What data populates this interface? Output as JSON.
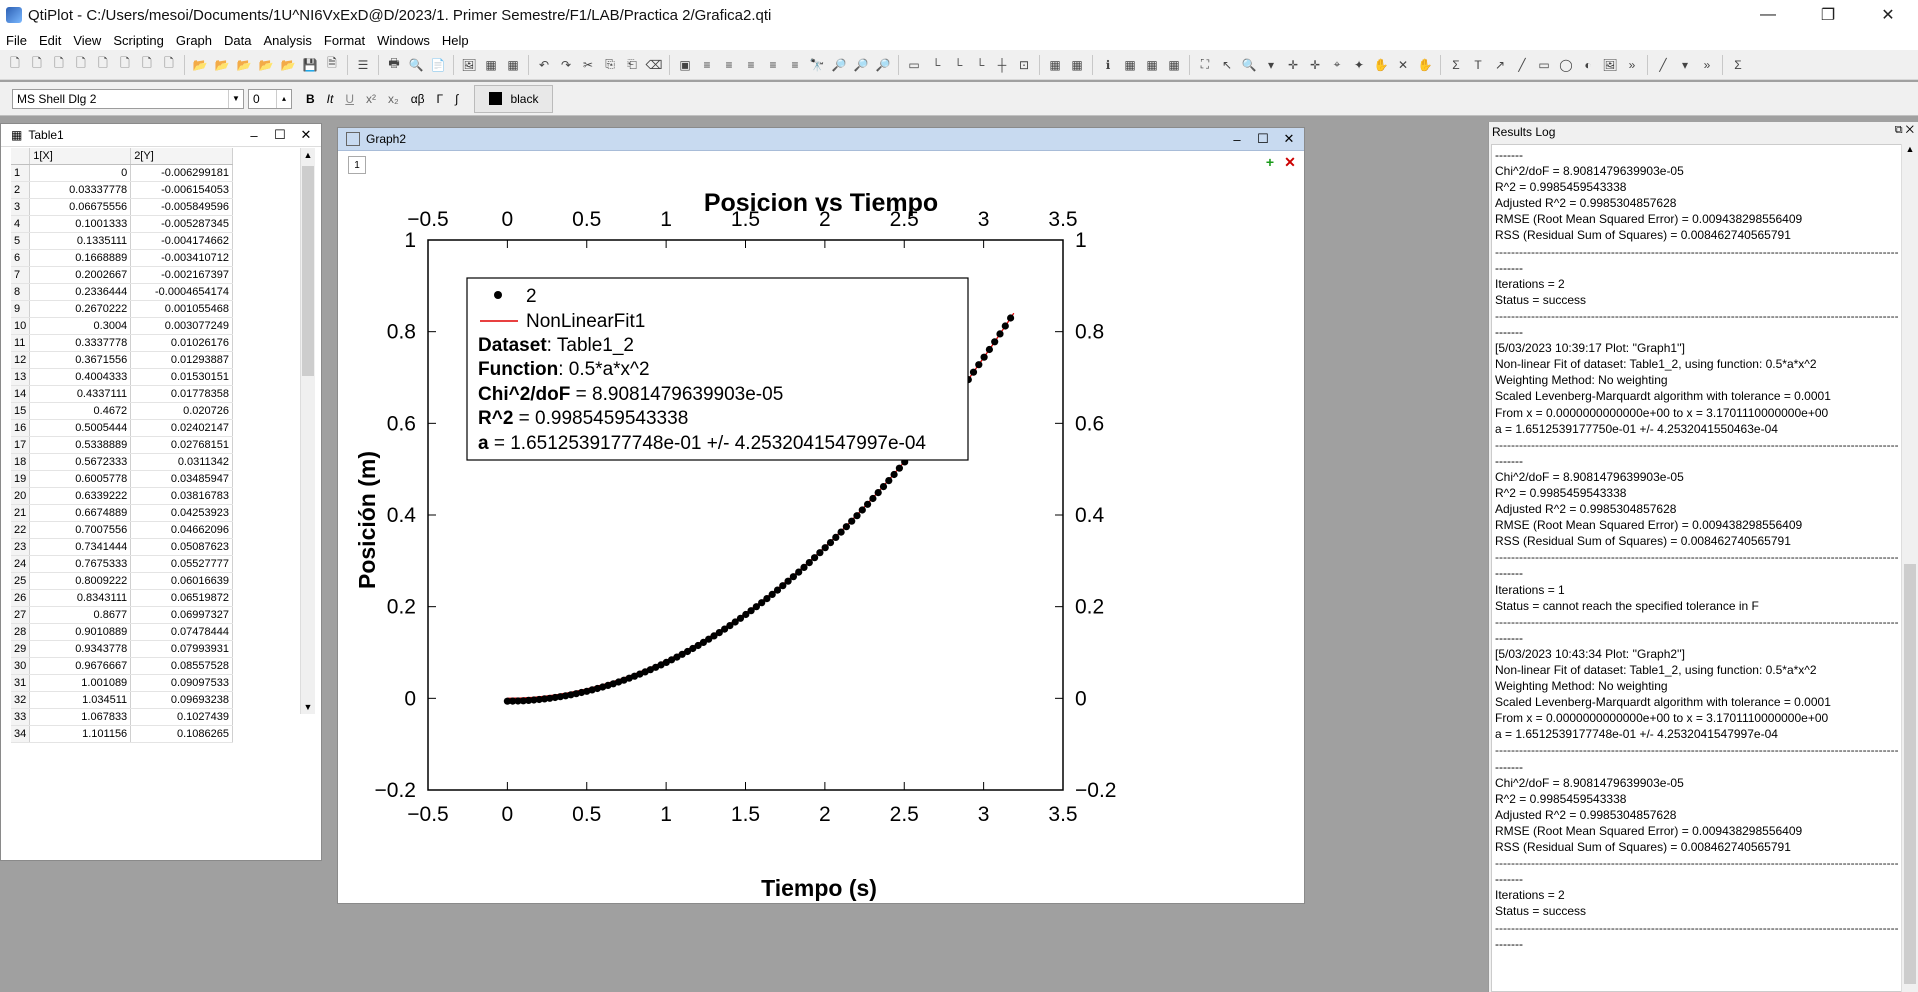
{
  "window": {
    "title": "QtiPlot - C:/Users/mesoi/Documents/1U^NI6VxExD@D/2023/1. Primer Semestre/F1/LAB/Practica 2/Grafica2.qti",
    "minimize": "—",
    "restore": "❐",
    "close": "✕"
  },
  "menu": [
    "File",
    "Edit",
    "View",
    "Scripting",
    "Graph",
    "Data",
    "Analysis",
    "Format",
    "Windows",
    "Help"
  ],
  "format_bar": {
    "font": "MS Shell Dlg 2",
    "size": "0",
    "bold": "B",
    "italic": "It",
    "underline": "U",
    "superscript": "x²",
    "subscript": "x₂",
    "greek": "αβ",
    "gamma": "Γ",
    "integral": "∫",
    "color_label": "black"
  },
  "table": {
    "title": "Table1",
    "col1": "1[X]",
    "col2": "2[Y]",
    "rows": [
      [
        "1",
        "0",
        "-0.006299181"
      ],
      [
        "2",
        "0.03337778",
        "-0.006154053"
      ],
      [
        "3",
        "0.06675556",
        "-0.005849596"
      ],
      [
        "4",
        "0.1001333",
        "-0.005287345"
      ],
      [
        "5",
        "0.1335111",
        "-0.004174662"
      ],
      [
        "6",
        "0.1668889",
        "-0.003410712"
      ],
      [
        "7",
        "0.2002667",
        "-0.002167397"
      ],
      [
        "8",
        "0.2336444",
        "-0.0004654174"
      ],
      [
        "9",
        "0.2670222",
        "0.001055468"
      ],
      [
        "10",
        "0.3004",
        "0.003077249"
      ],
      [
        "11",
        "0.3337778",
        "0.01026176"
      ],
      [
        "12",
        "0.3671556",
        "0.01293887"
      ],
      [
        "13",
        "0.4004333",
        "0.01530151"
      ],
      [
        "14",
        "0.4337111",
        "0.01778358"
      ],
      [
        "15",
        "0.4672",
        "0.020726"
      ],
      [
        "16",
        "0.5005444",
        "0.02402147"
      ],
      [
        "17",
        "0.5338889",
        "0.02768151"
      ],
      [
        "18",
        "0.5672333",
        "0.0311342"
      ],
      [
        "19",
        "0.6005778",
        "0.03485947"
      ],
      [
        "20",
        "0.6339222",
        "0.03816783"
      ],
      [
        "21",
        "0.6674889",
        "0.04253923"
      ],
      [
        "22",
        "0.7007556",
        "0.04662096"
      ],
      [
        "23",
        "0.7341444",
        "0.05087623"
      ],
      [
        "24",
        "0.7675333",
        "0.05527777"
      ],
      [
        "25",
        "0.8009222",
        "0.06016639"
      ],
      [
        "26",
        "0.8343111",
        "0.06519872"
      ],
      [
        "27",
        "0.8677",
        "0.06997327"
      ],
      [
        "28",
        "0.9010889",
        "0.07478444"
      ],
      [
        "29",
        "0.9343778",
        "0.07993931"
      ],
      [
        "30",
        "0.9676667",
        "0.08557528"
      ],
      [
        "31",
        "1.001089",
        "0.09097533"
      ],
      [
        "32",
        "1.034511",
        "0.09693238"
      ],
      [
        "33",
        "1.067833",
        "0.1027439"
      ],
      [
        "34",
        "1.101156",
        "0.1086265"
      ]
    ]
  },
  "graph": {
    "title": "Graph2",
    "layer": "1",
    "add_icon": "+",
    "remove_icon": "✕"
  },
  "chart_data": {
    "type": "scatter",
    "title": "Posicion vs Tiempo",
    "xlabel": "Tiempo (s)",
    "ylabel": "Posición (m)",
    "xlim": [
      -0.5,
      3.5
    ],
    "ylim": [
      -0.2,
      1.0
    ],
    "xticks": [
      "−0.5",
      "0",
      "0.5",
      "1",
      "1.5",
      "2",
      "2.5",
      "3",
      "3.5"
    ],
    "yticks": [
      "−0.2",
      "0",
      "0.2",
      "0.4",
      "0.6",
      "0.8",
      "1"
    ],
    "series": [
      {
        "name": "2",
        "kind": "points",
        "color": "#000000",
        "x_start": 0,
        "x_end": 3.1701111,
        "count": 96,
        "a": 0.16512539,
        "y_offset": -0.0063
      },
      {
        "name": "NonLinearFit1",
        "kind": "line",
        "color": "#e00000",
        "x_start": 0,
        "x_end": 3.1701111,
        "a": 0.16512539
      }
    ],
    "legend": {
      "points_label": "2",
      "line_label": "NonLinearFit1",
      "dataset_key": "Dataset",
      "dataset_val": ": Table1_2",
      "function_key": "Function",
      "function_val": ": 0.5*a*x^2",
      "chi_key": "Chi^2/doF",
      "chi_val": " = 8.9081479639903e-05",
      "r2_key": "R^2",
      "r2_val": " = 0.9985459543338",
      "a_key": "a",
      "a_val": " = 1.6512539177748e-01 +/- 4.2532041547997e-04"
    }
  },
  "results_log": {
    "title": "Results Log",
    "lines": [
      "-------",
      "Chi^2/doF = 8.9081479639903e-05",
      "R^2 = 0.9985459543338",
      "Adjusted R^2 = 0.9985304857628",
      "RMSE (Root Mean Squared Error) = 0.009438298556409",
      "RSS (Residual Sum of Squares) = 0.008462740565791",
      "----------------------------------------------------------------------------------------------------------------------------------------------",
      "-------",
      "Iterations = 2",
      "Status = success",
      "----------------------------------------------------------------------------------------------------------------------------------------------",
      "-------",
      "[5/03/2023 10:39:17          Plot: ''Graph1'']",
      "Non-linear Fit of dataset: Table1_2, using function: 0.5*a*x^2",
      "Weighting Method: No weighting",
      "Scaled Levenberg-Marquardt algorithm with tolerance = 0.0001",
      "From x = 0.0000000000000e+00 to x = 3.1701110000000e+00",
      "a = 1.6512539177750e-01 +/- 4.2532041550463e-04",
      "----------------------------------------------------------------------------------------------------------------------------------------------",
      "-------",
      "Chi^2/doF = 8.9081479639903e-05",
      "R^2 = 0.9985459543338",
      "Adjusted R^2 = 0.9985304857628",
      "RMSE (Root Mean Squared Error) = 0.009438298556409",
      "RSS (Residual Sum of Squares) = 0.008462740565791",
      "----------------------------------------------------------------------------------------------------------------------------------------------",
      "-------",
      "Iterations = 1",
      "Status = cannot reach the specified tolerance in F",
      "----------------------------------------------------------------------------------------------------------------------------------------------",
      "-------",
      "[5/03/2023 10:43:34          Plot: ''Graph2'']",
      "Non-linear Fit of dataset: Table1_2, using function: 0.5*a*x^2",
      "Weighting Method: No weighting",
      "Scaled Levenberg-Marquardt algorithm with tolerance = 0.0001",
      "From x = 0.0000000000000e+00 to x = 3.1701110000000e+00",
      "a = 1.6512539177748e-01 +/- 4.2532041547997e-04",
      "----------------------------------------------------------------------------------------------------------------------------------------------",
      "-------",
      "Chi^2/doF = 8.9081479639903e-05",
      "R^2 = 0.9985459543338",
      "Adjusted R^2 = 0.9985304857628",
      "RMSE (Root Mean Squared Error) = 0.009438298556409",
      "RSS (Residual Sum of Squares) = 0.008462740565791",
      "----------------------------------------------------------------------------------------------------------------------------------------------",
      "-------",
      "Iterations = 2",
      "Status = success",
      "----------------------------------------------------------------------------------------------------------------------------------------------",
      "-------"
    ]
  }
}
